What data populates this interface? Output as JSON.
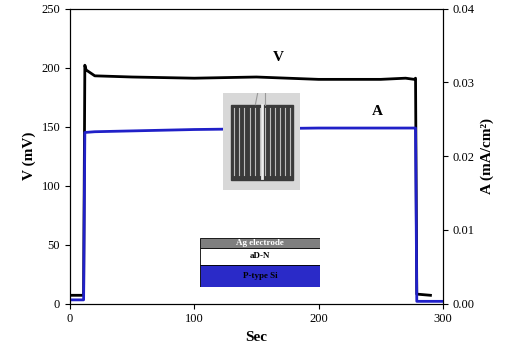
{
  "chart_data": {
    "type": "line",
    "xlabel": "Sec",
    "ylabel": "V (mV)",
    "y2label": "A (mA/cm²)",
    "xlim": [
      0,
      300
    ],
    "xticks": [
      0,
      100,
      200,
      300
    ],
    "ylim": [
      0,
      250
    ],
    "yticks": [
      0,
      50,
      100,
      150,
      200,
      250
    ],
    "y2lim": [
      0,
      0.04
    ],
    "y2ticks": [
      {
        "value": 0,
        "label": "0.00"
      },
      {
        "value": 0.01,
        "label": "0.01"
      },
      {
        "value": 0.02,
        "label": "0.02"
      },
      {
        "value": 0.03,
        "label": "0.03"
      },
      {
        "value": 0.04,
        "label": "0.04"
      }
    ],
    "series": [
      {
        "name": "V",
        "color": "#000000",
        "axis": "y",
        "x": [
          0,
          11,
          12,
          13,
          20,
          50,
          100,
          150,
          200,
          250,
          270,
          277,
          278,
          279,
          290
        ],
        "values": [
          7,
          7,
          202,
          198,
          193,
          192,
          191,
          192,
          190,
          190,
          191,
          190,
          191,
          8,
          7
        ]
      },
      {
        "name": "A",
        "color": "#2020c8",
        "axis": "y2",
        "x": [
          0,
          11,
          12,
          20,
          100,
          200,
          277,
          278,
          279,
          300
        ],
        "values": [
          0.0005,
          0.0005,
          0.0232,
          0.0233,
          0.0236,
          0.0238,
          0.0238,
          0.0238,
          0.0003,
          0.0003
        ]
      }
    ],
    "annotations": [
      {
        "text": "V",
        "x": 168,
        "y": 203,
        "axis": "y"
      },
      {
        "text": "A",
        "x": 247,
        "y": 0.0252,
        "axis": "y2"
      }
    ],
    "inset": {
      "layers": [
        "Ag electrode",
        "aD-N",
        "P-type Si"
      ]
    }
  }
}
